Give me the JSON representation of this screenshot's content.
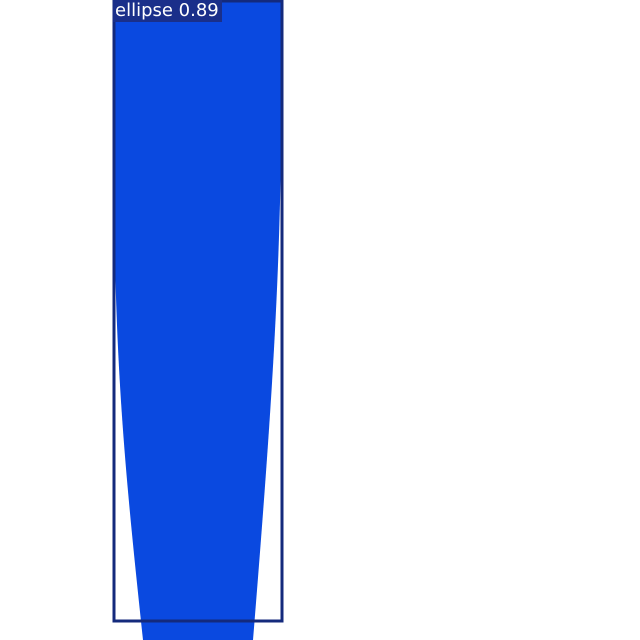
{
  "detection": {
    "label": "ellipse 0.89",
    "class_name": "ellipse",
    "confidence": 0.89
  },
  "colors": {
    "fill": "#0a49e0",
    "box": "#142a7c",
    "label_bg": "#1a2f8a",
    "label_text": "#ffffff",
    "background": "#ffffff"
  }
}
